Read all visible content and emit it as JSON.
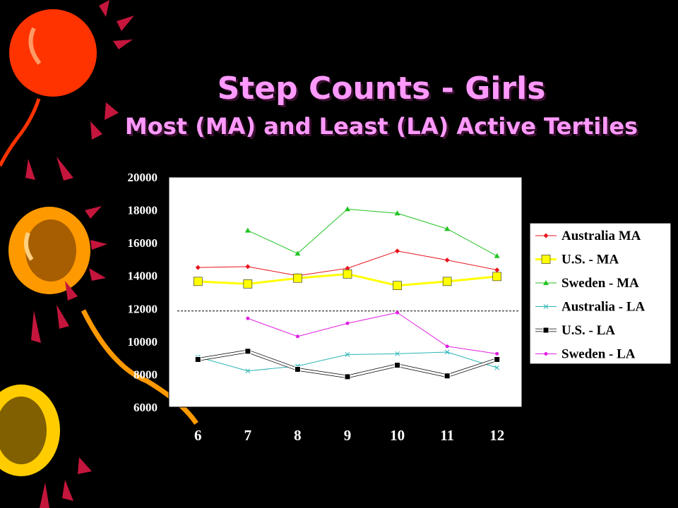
{
  "title": {
    "line1": "Step Counts - Girls",
    "line2": "Most (MA) and Least (LA) Active Tertiles"
  },
  "colors": {
    "background": "#000000",
    "title": "#ff99ff",
    "plot_area": "#ffffff"
  },
  "chart_data": {
    "type": "line",
    "x": [
      6,
      7,
      8,
      9,
      10,
      11,
      12
    ],
    "ylim": [
      6000,
      20000
    ],
    "yticks": [
      6000,
      8000,
      10000,
      12000,
      14000,
      16000,
      18000,
      20000
    ],
    "reference_line": 11850,
    "legend_position": "right",
    "series": [
      {
        "name": "Australia MA",
        "color": "#e8141e",
        "marker": "diamond",
        "width": 1,
        "values": [
          14500,
          14550,
          14000,
          14450,
          15500,
          14950,
          14350
        ]
      },
      {
        "name": "U.S. - MA",
        "color": "#ffff00",
        "marker": "square",
        "width": 3,
        "values": [
          13650,
          13500,
          13850,
          14100,
          13400,
          13650,
          13950
        ]
      },
      {
        "name": "Sweden - MA",
        "color": "#22c322",
        "marker": "triangle",
        "width": 1,
        "values": [
          null,
          16750,
          15350,
          18050,
          17800,
          16850,
          15200
        ]
      },
      {
        "name": "Australia - LA",
        "color": "#2ab5b5",
        "marker": "x",
        "width": 1,
        "values": [
          9050,
          8200,
          8500,
          9200,
          9250,
          9350,
          8400
        ]
      },
      {
        "name": "U.S. - LA",
        "color": "#ffffff",
        "marker": "square-small",
        "width": 3,
        "values": [
          8900,
          9400,
          8300,
          7850,
          8550,
          7900,
          8900
        ]
      },
      {
        "name": "Sweden - LA",
        "color": "#e020e0",
        "marker": "star",
        "width": 1,
        "values": [
          null,
          11400,
          10300,
          11100,
          11750,
          9700,
          9250
        ]
      }
    ]
  }
}
